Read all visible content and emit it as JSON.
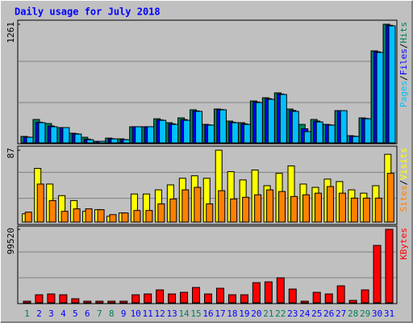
{
  "chart_data": [
    {
      "type": "bar",
      "title": "Daily usage for July 2018",
      "categories": [
        "1",
        "2",
        "3",
        "4",
        "5",
        "6",
        "7",
        "8",
        "9",
        "10",
        "11",
        "12",
        "13",
        "14",
        "15",
        "16",
        "17",
        "18",
        "19",
        "20",
        "21",
        "22",
        "23",
        "24",
        "25",
        "26",
        "27",
        "28",
        "29",
        "30",
        "31"
      ],
      "category_colors": [
        "#00805c",
        "#0000ff",
        "#0000ff",
        "#0000ff",
        "#0000ff",
        "#0000ff",
        "#00805c",
        "#00805c",
        "#0000ff",
        "#0000ff",
        "#0000ff",
        "#0000ff",
        "#0000ff",
        "#00805c",
        "#00805c",
        "#0000ff",
        "#0000ff",
        "#0000ff",
        "#0000ff",
        "#0000ff",
        "#00805c",
        "#00805c",
        "#0000ff",
        "#0000ff",
        "#0000ff",
        "#0000ff",
        "#0000ff",
        "#00805c",
        "#00805c",
        "#0000ff",
        "#0000ff"
      ],
      "legend_separator": "/",
      "series": [
        {
          "name": "Pages",
          "color": "#00c0ff",
          "values": [
            60,
            215,
            172,
            163,
            94,
            34,
            17,
            43,
            34,
            172,
            172,
            240,
            197,
            240,
            335,
            189,
            352,
            215,
            197,
            429,
            463,
            515,
            335,
            120,
            223,
            189,
            343,
            69,
            257,
            961,
            1244
          ]
        },
        {
          "name": "Files",
          "color": "#0000ff",
          "values": [
            62,
            220,
            180,
            163,
            98,
            40,
            17,
            45,
            36,
            172,
            172,
            245,
            203,
            248,
            340,
            192,
            355,
            220,
            203,
            435,
            470,
            520,
            345,
            150,
            232,
            192,
            343,
            72,
            260,
            968,
            1250
          ]
        },
        {
          "name": "Hits",
          "color": "#00805c",
          "values": [
            69,
            249,
            206,
            163,
            103,
            60,
            17,
            51,
            43,
            172,
            172,
            257,
            215,
            266,
            352,
            197,
            360,
            232,
            215,
            446,
            480,
            532,
            360,
            197,
            249,
            197,
            343,
            77,
            266,
            978,
            1261
          ]
        }
      ],
      "ylim": [
        0,
        1261
      ],
      "yticks": [
        1261
      ]
    },
    {
      "type": "bar",
      "legend_separator": "/",
      "series": [
        {
          "name": "Sites",
          "color": "#ff8000",
          "values": [
            12,
            46,
            26,
            13,
            16,
            16,
            15,
            9,
            11,
            14,
            14,
            22,
            28,
            39,
            42,
            22,
            38,
            28,
            30,
            33,
            39,
            37,
            31,
            33,
            35,
            43,
            35,
            29,
            29,
            29,
            59
          ]
        },
        {
          "name": "Visits",
          "color": "#ffff00",
          "values": [
            10,
            65,
            46,
            32,
            26,
            13,
            15,
            7,
            11,
            34,
            34,
            39,
            45,
            53,
            56,
            53,
            87,
            61,
            51,
            63,
            44,
            59,
            68,
            46,
            42,
            52,
            49,
            39,
            35,
            44,
            82
          ]
        }
      ],
      "ylim": [
        0,
        87
      ],
      "yticks": [
        87
      ]
    },
    {
      "type": "bar",
      "series": [
        {
          "name": "KBytes",
          "color": "#ff0000",
          "values": [
            2200,
            10900,
            12000,
            10900,
            5500,
            2200,
            2200,
            2200,
            2200,
            10900,
            12000,
            17500,
            12000,
            14200,
            20800,
            12000,
            19700,
            10900,
            10900,
            27300,
            28400,
            33900,
            18600,
            2200,
            14200,
            12000,
            23000,
            3300,
            17500,
            77700,
            99520
          ]
        }
      ],
      "ylim": [
        0,
        99520
      ],
      "yticks": [
        99520
      ]
    }
  ]
}
